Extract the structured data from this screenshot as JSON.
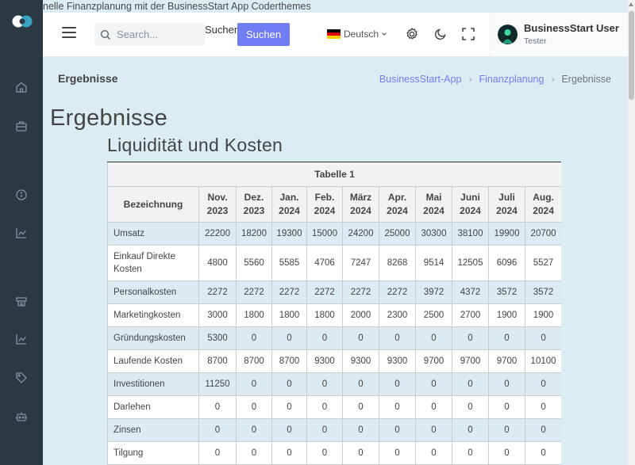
{
  "tagline": "nelle Finanzplanung mit der BusinessStart App Coderthemes",
  "search": {
    "placeholder": "Search...",
    "label": "Suchen",
    "button": "Suchen"
  },
  "language": {
    "label": "Deutsch"
  },
  "user": {
    "name": "BusinessStart User",
    "role": "Tester"
  },
  "page": {
    "title": "Ergebnisse",
    "heading": "Ergebnisse",
    "subheading": "Liquidität und Kosten"
  },
  "breadcrumb": [
    "BusinessStart-App",
    "Finanzplanung",
    "Ergebnisse"
  ],
  "sidebar_icons": [
    "home-icon",
    "briefcase-icon",
    "info-icon",
    "chart-line-icon",
    "printer-icon",
    "chart-line-icon",
    "tag-icon",
    "robot-icon"
  ],
  "colors": {
    "primary": "#727cf5",
    "sidebar": "#2b3944",
    "row_alt": "#dcebf2",
    "background": "#dcecf3"
  },
  "table": {
    "caption": "Tabelle 1",
    "first_header": "Bezeichnung",
    "months": [
      [
        "Nov.",
        "2023"
      ],
      [
        "Dez.",
        "2023"
      ],
      [
        "Jan.",
        "2024"
      ],
      [
        "Feb.",
        "2024"
      ],
      [
        "März",
        "2024"
      ],
      [
        "Apr.",
        "2024"
      ],
      [
        "Mai",
        "2024"
      ],
      [
        "Juni",
        "2024"
      ],
      [
        "Juli",
        "2024"
      ],
      [
        "Aug.",
        "2024"
      ]
    ],
    "rows": [
      {
        "label": "Umsatz",
        "values": [
          "22200",
          "18200",
          "19300",
          "15000",
          "24200",
          "25000",
          "30300",
          "38100",
          "19900",
          "20700"
        ]
      },
      {
        "label": "Einkauf Direkte Kosten",
        "values": [
          "4800",
          "5560",
          "5585",
          "4706",
          "7247",
          "8268",
          "9514",
          "12505",
          "6096",
          "5527"
        ]
      },
      {
        "label": "Personalkosten",
        "values": [
          "2272",
          "2272",
          "2272",
          "2272",
          "2272",
          "2272",
          "3972",
          "4372",
          "3572",
          "3572"
        ]
      },
      {
        "label": "Marketingkosten",
        "values": [
          "3000",
          "1800",
          "1800",
          "1800",
          "2000",
          "2300",
          "2500",
          "2700",
          "1900",
          "1900"
        ]
      },
      {
        "label": "Gründungskosten",
        "values": [
          "5300",
          "0",
          "0",
          "0",
          "0",
          "0",
          "0",
          "0",
          "0",
          "0"
        ]
      },
      {
        "label": "Laufende Kosten",
        "values": [
          "8700",
          "8700",
          "8700",
          "9300",
          "9300",
          "9300",
          "9700",
          "9700",
          "9700",
          "10100"
        ]
      },
      {
        "label": "Investitionen",
        "values": [
          "11250",
          "0",
          "0",
          "0",
          "0",
          "0",
          "0",
          "0",
          "0",
          "0"
        ]
      },
      {
        "label": "Darlehen",
        "values": [
          "0",
          "0",
          "0",
          "0",
          "0",
          "0",
          "0",
          "0",
          "0",
          "0"
        ]
      },
      {
        "label": "Zinsen",
        "values": [
          "0",
          "0",
          "0",
          "0",
          "0",
          "0",
          "0",
          "0",
          "0",
          "0"
        ]
      },
      {
        "label": "Tilgung",
        "values": [
          "0",
          "0",
          "0",
          "0",
          "0",
          "0",
          "0",
          "0",
          "0",
          "0"
        ]
      }
    ]
  }
}
